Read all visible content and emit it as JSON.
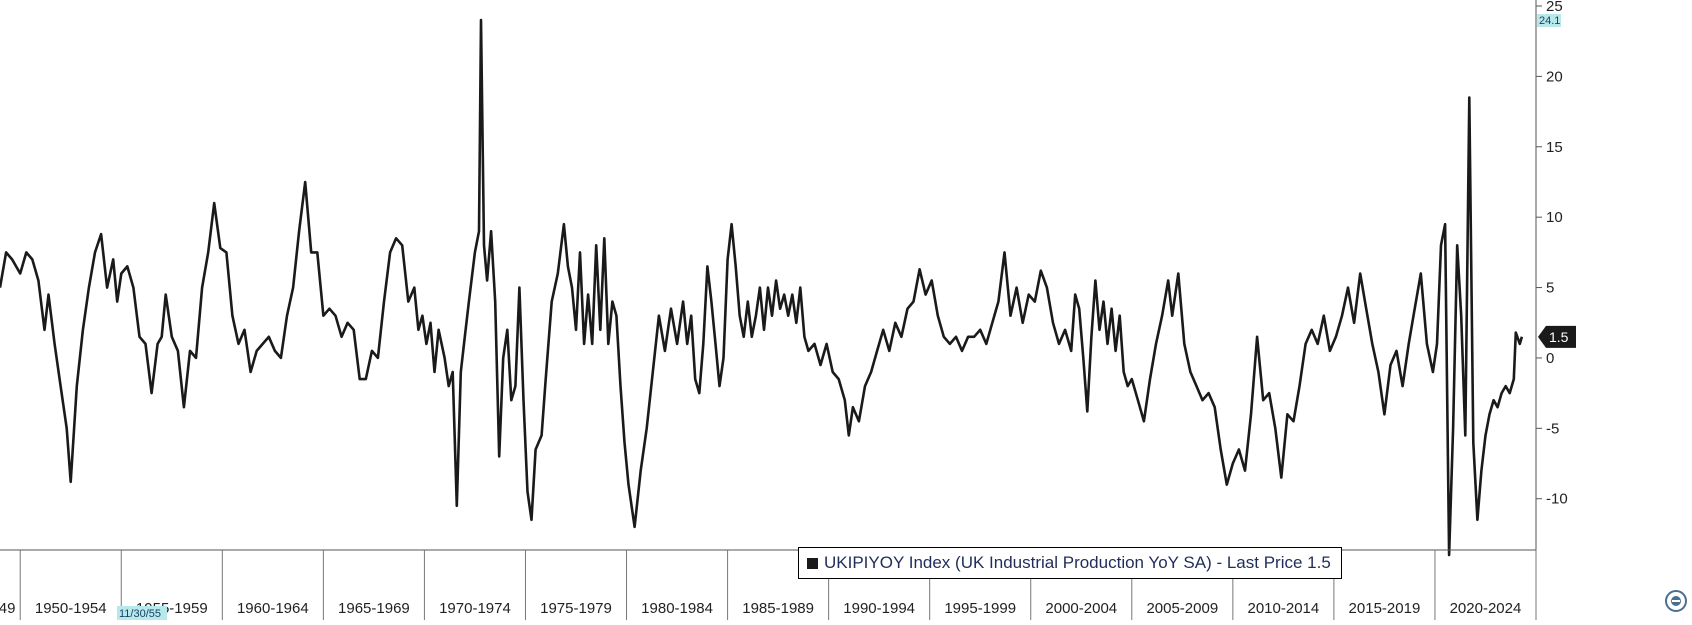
{
  "chart_data": {
    "type": "line",
    "ticker": "UKIPIYOY",
    "x_range": [
      "1949",
      "2025"
    ],
    "ylim": [
      -13.5,
      25
    ],
    "y_ticks": [
      -10,
      -5,
      0,
      5,
      10,
      15,
      20,
      25
    ],
    "y_tick_labels": [
      "-10",
      "-5",
      "0",
      "5",
      "10",
      "15",
      "20",
      "25"
    ],
    "x_tick_labels": [
      "49",
      "1950-1954",
      "1955-1959",
      "1960-1964",
      "1965-1969",
      "1970-1974",
      "1975-1979",
      "1980-1984",
      "1985-1989",
      "1990-1994",
      "1995-1999",
      "2000-2004",
      "2005-2009",
      "2010-2014",
      "2015-2019",
      "2020-2024"
    ],
    "y_max_marker": "24.1",
    "cursor_date": "11/30/55",
    "last_price_label": "1.5",
    "series": [
      {
        "name": "UKIPIYOY Index (UK Industrial Production YoY SA) - Last Price 1.5",
        "color": "#1a1a1a",
        "points": [
          [
            1949.0,
            5.0
          ],
          [
            1949.3,
            7.5
          ],
          [
            1949.6,
            7.0
          ],
          [
            1950.0,
            6.0
          ],
          [
            1950.3,
            7.5
          ],
          [
            1950.6,
            7.0
          ],
          [
            1950.9,
            5.5
          ],
          [
            1951.2,
            2.0
          ],
          [
            1951.4,
            4.5
          ],
          [
            1951.7,
            1.0
          ],
          [
            1952.0,
            -2.0
          ],
          [
            1952.3,
            -5.0
          ],
          [
            1952.5,
            -8.8
          ],
          [
            1952.8,
            -2.0
          ],
          [
            1953.1,
            2.0
          ],
          [
            1953.4,
            5.0
          ],
          [
            1953.7,
            7.5
          ],
          [
            1954.0,
            8.8
          ],
          [
            1954.3,
            5.0
          ],
          [
            1954.6,
            7.0
          ],
          [
            1954.8,
            4.0
          ],
          [
            1955.0,
            6.0
          ],
          [
            1955.3,
            6.5
          ],
          [
            1955.6,
            5.0
          ],
          [
            1955.9,
            1.5
          ],
          [
            1956.2,
            1.0
          ],
          [
            1956.5,
            -2.5
          ],
          [
            1956.8,
            1.0
          ],
          [
            1957.0,
            1.5
          ],
          [
            1957.2,
            4.5
          ],
          [
            1957.5,
            1.5
          ],
          [
            1957.8,
            0.5
          ],
          [
            1958.1,
            -3.5
          ],
          [
            1958.4,
            0.5
          ],
          [
            1958.7,
            0.0
          ],
          [
            1959.0,
            5.0
          ],
          [
            1959.3,
            7.5
          ],
          [
            1959.6,
            11.0
          ],
          [
            1959.9,
            7.8
          ],
          [
            1960.2,
            7.5
          ],
          [
            1960.5,
            3.0
          ],
          [
            1960.8,
            1.0
          ],
          [
            1961.1,
            2.0
          ],
          [
            1961.4,
            -1.0
          ],
          [
            1961.7,
            0.5
          ],
          [
            1962.0,
            1.0
          ],
          [
            1962.3,
            1.5
          ],
          [
            1962.6,
            0.5
          ],
          [
            1962.9,
            0.0
          ],
          [
            1963.2,
            3.0
          ],
          [
            1963.5,
            5.0
          ],
          [
            1963.8,
            9.0
          ],
          [
            1964.1,
            12.5
          ],
          [
            1964.4,
            7.5
          ],
          [
            1964.7,
            7.5
          ],
          [
            1965.0,
            3.0
          ],
          [
            1965.3,
            3.5
          ],
          [
            1965.6,
            3.0
          ],
          [
            1965.9,
            1.5
          ],
          [
            1966.2,
            2.5
          ],
          [
            1966.5,
            2.0
          ],
          [
            1966.8,
            -1.5
          ],
          [
            1967.1,
            -1.5
          ],
          [
            1967.4,
            0.5
          ],
          [
            1967.7,
            0.0
          ],
          [
            1968.0,
            4.0
          ],
          [
            1968.3,
            7.5
          ],
          [
            1968.6,
            8.5
          ],
          [
            1968.9,
            8.0
          ],
          [
            1969.2,
            4.0
          ],
          [
            1969.5,
            5.0
          ],
          [
            1969.7,
            2.0
          ],
          [
            1969.9,
            3.0
          ],
          [
            1970.1,
            1.0
          ],
          [
            1970.3,
            2.5
          ],
          [
            1970.5,
            -1.0
          ],
          [
            1970.7,
            2.0
          ],
          [
            1971.0,
            0.0
          ],
          [
            1971.2,
            -2.0
          ],
          [
            1971.4,
            -1.0
          ],
          [
            1971.6,
            -10.5
          ],
          [
            1971.8,
            -1.0
          ],
          [
            1972.0,
            1.5
          ],
          [
            1972.2,
            4.0
          ],
          [
            1972.5,
            7.5
          ],
          [
            1972.7,
            9.0
          ],
          [
            1972.8,
            24.0
          ],
          [
            1972.95,
            8.0
          ],
          [
            1973.1,
            5.5
          ],
          [
            1973.3,
            9.0
          ],
          [
            1973.5,
            4.0
          ],
          [
            1973.7,
            -7.0
          ],
          [
            1973.9,
            0.0
          ],
          [
            1974.1,
            2.0
          ],
          [
            1974.3,
            -3.0
          ],
          [
            1974.5,
            -2.0
          ],
          [
            1974.7,
            5.0
          ],
          [
            1974.9,
            -3.0
          ],
          [
            1975.1,
            -9.5
          ],
          [
            1975.3,
            -11.5
          ],
          [
            1975.5,
            -6.5
          ],
          [
            1975.8,
            -5.5
          ],
          [
            1976.0,
            -1.5
          ],
          [
            1976.3,
            4.0
          ],
          [
            1976.6,
            6.0
          ],
          [
            1976.9,
            9.5
          ],
          [
            1977.1,
            6.5
          ],
          [
            1977.3,
            5.0
          ],
          [
            1977.5,
            2.0
          ],
          [
            1977.7,
            7.5
          ],
          [
            1977.9,
            1.0
          ],
          [
            1978.1,
            4.5
          ],
          [
            1978.3,
            1.0
          ],
          [
            1978.5,
            8.0
          ],
          [
            1978.7,
            2.0
          ],
          [
            1978.9,
            8.5
          ],
          [
            1979.1,
            1.0
          ],
          [
            1979.3,
            4.0
          ],
          [
            1979.5,
            3.0
          ],
          [
            1979.7,
            -2.0
          ],
          [
            1979.9,
            -6.0
          ],
          [
            1980.1,
            -9.0
          ],
          [
            1980.4,
            -12.0
          ],
          [
            1980.7,
            -8.0
          ],
          [
            1981.0,
            -5.0
          ],
          [
            1981.3,
            -1.0
          ],
          [
            1981.6,
            3.0
          ],
          [
            1981.9,
            0.5
          ],
          [
            1982.2,
            3.5
          ],
          [
            1982.5,
            1.0
          ],
          [
            1982.8,
            4.0
          ],
          [
            1983.0,
            1.0
          ],
          [
            1983.2,
            3.0
          ],
          [
            1983.4,
            -1.5
          ],
          [
            1983.6,
            -2.5
          ],
          [
            1983.8,
            1.0
          ],
          [
            1984.0,
            6.5
          ],
          [
            1984.2,
            4.0
          ],
          [
            1984.4,
            1.0
          ],
          [
            1984.6,
            -2.0
          ],
          [
            1984.8,
            0.0
          ],
          [
            1985.0,
            7.0
          ],
          [
            1985.2,
            9.5
          ],
          [
            1985.4,
            6.5
          ],
          [
            1985.6,
            3.0
          ],
          [
            1985.8,
            1.5
          ],
          [
            1986.0,
            4.0
          ],
          [
            1986.2,
            1.5
          ],
          [
            1986.4,
            3.0
          ],
          [
            1986.6,
            5.0
          ],
          [
            1986.8,
            2.0
          ],
          [
            1987.0,
            5.0
          ],
          [
            1987.2,
            3.0
          ],
          [
            1987.4,
            5.5
          ],
          [
            1987.6,
            3.5
          ],
          [
            1987.8,
            4.5
          ],
          [
            1988.0,
            3.0
          ],
          [
            1988.2,
            4.5
          ],
          [
            1988.4,
            2.5
          ],
          [
            1988.6,
            5.0
          ],
          [
            1988.8,
            1.5
          ],
          [
            1989.0,
            0.5
          ],
          [
            1989.3,
            1.0
          ],
          [
            1989.6,
            -0.5
          ],
          [
            1989.9,
            1.0
          ],
          [
            1990.2,
            -1.0
          ],
          [
            1990.5,
            -1.5
          ],
          [
            1990.8,
            -3.0
          ],
          [
            1991.0,
            -5.5
          ],
          [
            1991.2,
            -3.5
          ],
          [
            1991.5,
            -4.5
          ],
          [
            1991.8,
            -2.0
          ],
          [
            1992.1,
            -1.0
          ],
          [
            1992.4,
            0.5
          ],
          [
            1992.7,
            2.0
          ],
          [
            1993.0,
            0.5
          ],
          [
            1993.3,
            2.5
          ],
          [
            1993.6,
            1.5
          ],
          [
            1993.9,
            3.5
          ],
          [
            1994.2,
            4.0
          ],
          [
            1994.5,
            6.3
          ],
          [
            1994.8,
            4.5
          ],
          [
            1995.1,
            5.5
          ],
          [
            1995.4,
            3.0
          ],
          [
            1995.7,
            1.5
          ],
          [
            1996.0,
            1.0
          ],
          [
            1996.3,
            1.5
          ],
          [
            1996.6,
            0.5
          ],
          [
            1996.9,
            1.5
          ],
          [
            1997.2,
            1.5
          ],
          [
            1997.5,
            2.0
          ],
          [
            1997.8,
            1.0
          ],
          [
            1998.1,
            2.5
          ],
          [
            1998.4,
            4.0
          ],
          [
            1998.7,
            7.5
          ],
          [
            1999.0,
            3.0
          ],
          [
            1999.3,
            5.0
          ],
          [
            1999.6,
            2.5
          ],
          [
            1999.9,
            4.5
          ],
          [
            2000.2,
            4.0
          ],
          [
            2000.5,
            6.2
          ],
          [
            2000.8,
            5.0
          ],
          [
            2001.1,
            2.5
          ],
          [
            2001.4,
            1.0
          ],
          [
            2001.7,
            2.0
          ],
          [
            2002.0,
            0.5
          ],
          [
            2002.2,
            4.5
          ],
          [
            2002.4,
            3.5
          ],
          [
            2002.6,
            0.0
          ],
          [
            2002.8,
            -3.8
          ],
          [
            2003.0,
            1.5
          ],
          [
            2003.2,
            5.5
          ],
          [
            2003.4,
            2.0
          ],
          [
            2003.6,
            4.0
          ],
          [
            2003.8,
            1.0
          ],
          [
            2004.0,
            3.5
          ],
          [
            2004.2,
            0.5
          ],
          [
            2004.4,
            3.0
          ],
          [
            2004.6,
            -1.0
          ],
          [
            2004.8,
            -2.0
          ],
          [
            2005.0,
            -1.5
          ],
          [
            2005.3,
            -3.0
          ],
          [
            2005.6,
            -4.5
          ],
          [
            2005.9,
            -1.5
          ],
          [
            2006.2,
            1.0
          ],
          [
            2006.5,
            3.0
          ],
          [
            2006.8,
            5.5
          ],
          [
            2007.0,
            3.0
          ],
          [
            2007.3,
            6.0
          ],
          [
            2007.6,
            1.0
          ],
          [
            2007.9,
            -1.0
          ],
          [
            2008.2,
            -2.0
          ],
          [
            2008.5,
            -3.0
          ],
          [
            2008.8,
            -2.5
          ],
          [
            2009.1,
            -3.5
          ],
          [
            2009.4,
            -6.5
          ],
          [
            2009.7,
            -9.0
          ],
          [
            2010.0,
            -7.5
          ],
          [
            2010.3,
            -6.5
          ],
          [
            2010.6,
            -8.0
          ],
          [
            2010.9,
            -4.0
          ],
          [
            2011.2,
            1.5
          ],
          [
            2011.5,
            -3.0
          ],
          [
            2011.8,
            -2.5
          ],
          [
            2012.1,
            -5.0
          ],
          [
            2012.4,
            -8.5
          ],
          [
            2012.7,
            -4.0
          ],
          [
            2013.0,
            -4.5
          ],
          [
            2013.3,
            -2.0
          ],
          [
            2013.6,
            1.0
          ],
          [
            2013.9,
            2.0
          ],
          [
            2014.2,
            1.0
          ],
          [
            2014.5,
            3.0
          ],
          [
            2014.8,
            0.5
          ],
          [
            2015.1,
            1.5
          ],
          [
            2015.4,
            3.0
          ],
          [
            2015.7,
            5.0
          ],
          [
            2016.0,
            2.5
          ],
          [
            2016.3,
            6.0
          ],
          [
            2016.6,
            3.5
          ],
          [
            2016.9,
            1.0
          ],
          [
            2017.2,
            -1.0
          ],
          [
            2017.5,
            -4.0
          ],
          [
            2017.8,
            -0.5
          ],
          [
            2018.1,
            0.5
          ],
          [
            2018.4,
            -2.0
          ],
          [
            2018.7,
            1.0
          ],
          [
            2019.0,
            3.5
          ],
          [
            2019.3,
            6.0
          ],
          [
            2019.6,
            1.0
          ],
          [
            2019.9,
            -1.0
          ],
          [
            2020.1,
            1.0
          ],
          [
            2020.3,
            8.0
          ],
          [
            2020.5,
            9.5
          ],
          [
            2020.7,
            -14.0
          ],
          [
            2020.9,
            -5.0
          ],
          [
            2021.1,
            8.0
          ],
          [
            2021.3,
            3.0
          ],
          [
            2021.5,
            -5.5
          ],
          [
            2021.7,
            18.5
          ],
          [
            2021.9,
            -6.0
          ],
          [
            2022.1,
            -11.5
          ],
          [
            2022.3,
            -8.0
          ],
          [
            2022.5,
            -5.5
          ],
          [
            2022.7,
            -4.0
          ],
          [
            2022.9,
            -3.0
          ],
          [
            2023.1,
            -3.5
          ],
          [
            2023.3,
            -2.5
          ],
          [
            2023.5,
            -2.0
          ],
          [
            2023.7,
            -2.5
          ],
          [
            2023.9,
            -1.5
          ],
          [
            2024.0,
            1.8
          ],
          [
            2024.2,
            1.0
          ],
          [
            2024.3,
            1.5
          ]
        ]
      }
    ]
  },
  "legend": {
    "label": "UKIPIYOY Index (UK Industrial Production YoY SA) - Last Price 1.5"
  },
  "colors": {
    "line": "#1a1a1a",
    "max_marker_bg": "#b7e9ea",
    "cursor_bg": "#b7e9ea",
    "last_price_bg": "#1a1a1a",
    "axis_text": "#222222"
  },
  "icons": {
    "corner": "bloomberg-menu-icon"
  }
}
